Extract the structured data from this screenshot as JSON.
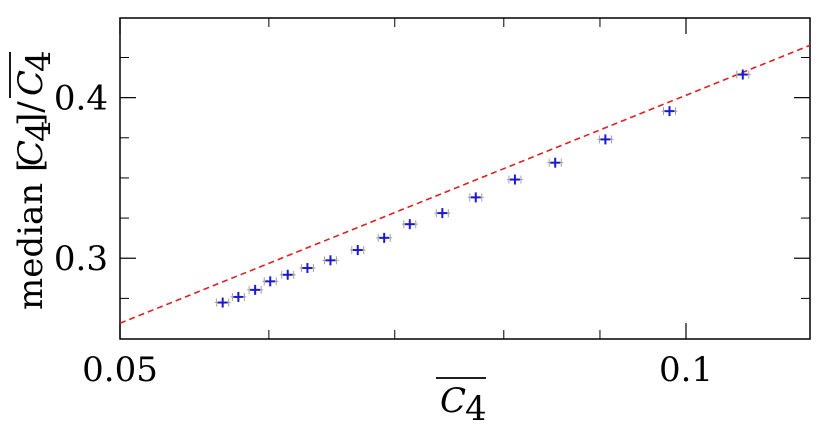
{
  "chart_data": {
    "type": "scatter",
    "title": "",
    "xlabel": "C̄₄",
    "ylabel": "median [C₄]/C̄₄",
    "xscale": "log",
    "xlim": [
      0.05,
      0.1164
    ],
    "ylim": [
      0.2497,
      0.4496
    ],
    "xticks": [
      {
        "value": 0.05,
        "label": "0.05"
      },
      {
        "value": 0.1,
        "label": "0.1"
      }
    ],
    "yticks": [
      {
        "value": 0.3,
        "label": "0.3"
      },
      {
        "value": 0.4,
        "label": "0.4"
      }
    ],
    "grid": false,
    "legend": "none",
    "series": [
      {
        "marker": "plus",
        "color": "#1a1acc",
        "errorbar_color": "#a0a0a0",
        "points": [
          {
            "x": 0.0567,
            "y": 0.2724
          },
          {
            "x": 0.0578,
            "y": 0.2759
          },
          {
            "x": 0.059,
            "y": 0.2803
          },
          {
            "x": 0.0601,
            "y": 0.2856
          },
          {
            "x": 0.0614,
            "y": 0.2897
          },
          {
            "x": 0.0629,
            "y": 0.2939
          },
          {
            "x": 0.0647,
            "y": 0.2987
          },
          {
            "x": 0.0669,
            "y": 0.3051
          },
          {
            "x": 0.0691,
            "y": 0.3127
          },
          {
            "x": 0.0713,
            "y": 0.3212
          },
          {
            "x": 0.0742,
            "y": 0.3281
          },
          {
            "x": 0.0773,
            "y": 0.3379
          },
          {
            "x": 0.0811,
            "y": 0.349
          },
          {
            "x": 0.0852,
            "y": 0.3595
          },
          {
            "x": 0.0906,
            "y": 0.374
          },
          {
            "x": 0.098,
            "y": 0.3916
          },
          {
            "x": 0.1072,
            "y": 0.4144
          }
        ]
      },
      {
        "style": "dashed-line",
        "color": "#e02020",
        "x": [
          0.05,
          0.1164
        ],
        "y": [
          0.2595,
          0.4326
        ]
      }
    ]
  }
}
